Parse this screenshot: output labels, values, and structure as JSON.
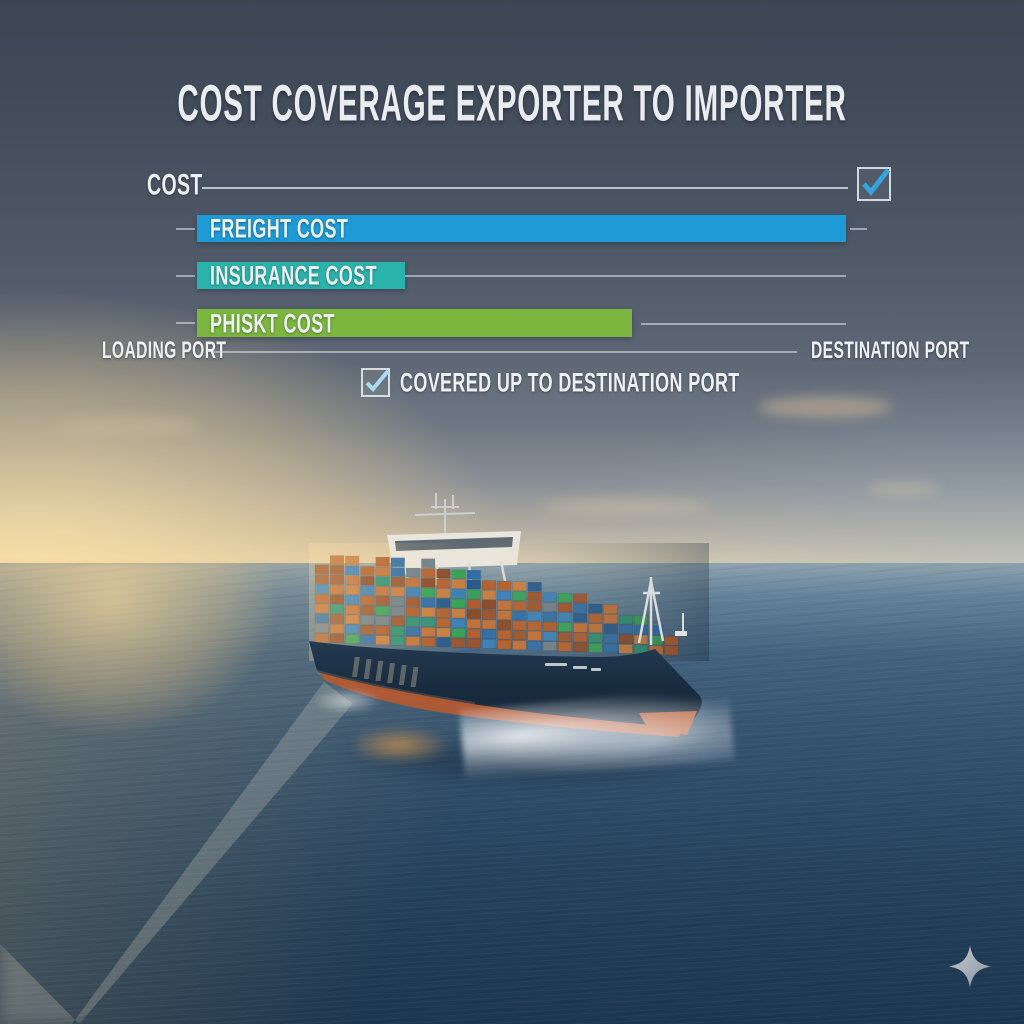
{
  "chart_data": {
    "type": "bar",
    "orientation": "horizontal",
    "title": "COST COVERAGE EXPORTER TO IMPORTER",
    "axis_label": "COST",
    "axis_checkbox": {
      "checked": true,
      "check_color": "#35a4dc"
    },
    "categories": [
      "FREIGHT COST",
      "INSURANCE COST",
      "PHISKT COST"
    ],
    "series": [
      {
        "name": "FREIGHT COST",
        "value_percent_of_route": 100,
        "color": "#1e9bd7"
      },
      {
        "name": "INSURANCE COST",
        "value_percent_of_route": 32,
        "color": "#2ab3ab"
      },
      {
        "name": "PHISKT COST",
        "value_percent_of_route": 67,
        "color": "#7cb63e"
      }
    ],
    "x_axis": {
      "start_label": "LOADING PORT",
      "end_label": "DESTINATION PORT",
      "range_percent": [
        0,
        100
      ]
    },
    "annotation": {
      "checked": true,
      "label": "COVERED UP TO DESTINATION PORT",
      "check_color": "#a9dcec"
    },
    "grid": false,
    "legend_position": "below-chart"
  },
  "icons": {
    "check": "✓",
    "sparkle": "✦"
  },
  "colors": {
    "line_gray": "#cdd5dc",
    "text_white": "#eef1f3",
    "sky_top": "#3c4653",
    "ocean_deep": "#1d3750",
    "sunset_gold": "#f4d698"
  },
  "photo": {
    "subject": "container cargo ship loaded with multicolored containers sailing toward viewer on open ocean at golden hour",
    "hull_text": "illegible"
  },
  "watermark": {
    "shape": "four-pointed-star"
  }
}
